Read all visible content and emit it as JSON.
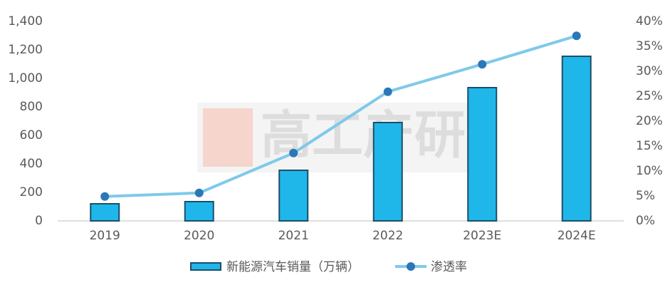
{
  "chart_data": {
    "type": "bar",
    "watermark": "高工产研",
    "categories": [
      "2019",
      "2020",
      "2021",
      "2022",
      "2023E",
      "2024E"
    ],
    "series": [
      {
        "name": "新能源汽车销量（万辆）",
        "type": "bar",
        "color": "#1fb6ea",
        "values": [
          120,
          135,
          355,
          690,
          935,
          1155
        ]
      },
      {
        "name": "渗透率",
        "type": "line",
        "axis": "y2",
        "color": "#7fc9ea",
        "marker_color": "#2a78b8",
        "values": [
          4.9,
          5.6,
          13.6,
          25.9,
          31.4,
          37.1
        ]
      }
    ],
    "ylim": [
      0,
      1400
    ],
    "yticks": [
      0,
      200,
      400,
      600,
      800,
      {
        "value": 1000,
        "label": "1,000"
      },
      {
        "value": 1200,
        "label": "1,200"
      },
      {
        "value": 1400,
        "label": "1,400"
      }
    ],
    "y2lim": [
      0,
      40
    ],
    "y2ticks": [
      {
        "value": 0,
        "label": "0%"
      },
      {
        "value": 5,
        "label": "5%"
      },
      {
        "value": 10,
        "label": "10%"
      },
      {
        "value": 15,
        "label": "15%"
      },
      {
        "value": 20,
        "label": "20%"
      },
      {
        "value": 25,
        "label": "25%"
      },
      {
        "value": 30,
        "label": "30%"
      },
      {
        "value": 35,
        "label": "35%"
      },
      {
        "value": 40,
        "label": "40%"
      }
    ],
    "legend": "bottom"
  }
}
